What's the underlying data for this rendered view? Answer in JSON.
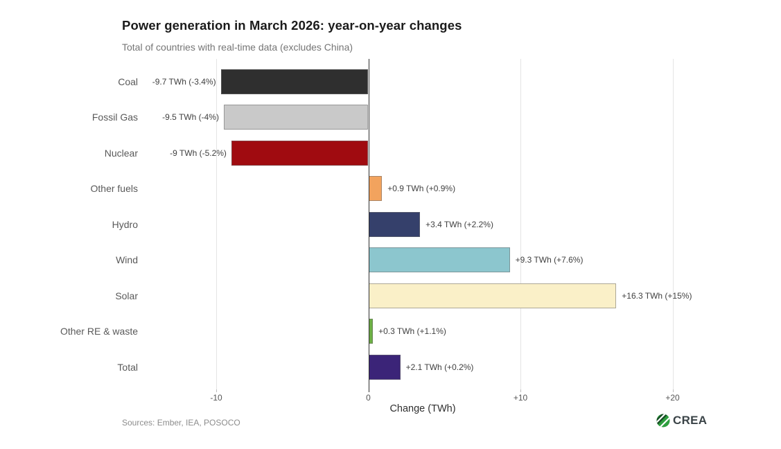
{
  "header": {
    "title": "Power generation in March 2026: year-on-year changes",
    "subtitle": "Total of countries with real-time data (excludes China)"
  },
  "footer": {
    "sources": "Sources: Ember, IEA, POSOCO",
    "logo_text": "CREA",
    "logo_icon": "crea-circle-icon",
    "logo_green": "#2e9e3e",
    "logo_dark_band": "#174f25"
  },
  "chart_data": {
    "type": "bar",
    "orientation": "horizontal",
    "title": "Power generation in March 2026: year-on-year changes",
    "subtitle": "Total of countries with real-time data (excludes China)",
    "categories": [
      "Coal",
      "Fossil Gas",
      "Nuclear",
      "Other fuels",
      "Hydro",
      "Wind",
      "Solar",
      "Other RE & waste",
      "Total"
    ],
    "values": [
      -9.7,
      -9.5,
      -9,
      0.9,
      3.4,
      9.3,
      16.3,
      0.3,
      2.1
    ],
    "bar_labels": [
      "-9.7 TWh (-3.4%)",
      "-9.5 TWh (-4%)",
      "-9 TWh (-5.2%)",
      "+0.9 TWh (+0.9%)",
      "+3.4 TWh (+2.2%)",
      "+9.3 TWh (+7.6%)",
      "+16.3 TWh (+15%)",
      "+0.3 TWh (+1.1%)",
      "+2.1 TWh (+0.2%)"
    ],
    "colors": [
      "#2f2f2f",
      "#c9c9c9",
      "#a00b10",
      "#f2a35e",
      "#35406b",
      "#8cc6ce",
      "#faf0c8",
      "#6cae44",
      "#3b2478"
    ],
    "xlabel": "Change (TWh)",
    "xticks": [
      -10,
      0,
      10,
      20
    ],
    "xtick_labels": [
      "-10",
      "0",
      "+10",
      "+20"
    ],
    "xlim": [
      -15,
      22
    ],
    "grid": "light vertical gridlines at ticks, dark vertical line at zero",
    "legend": "none",
    "units": "TWh"
  }
}
